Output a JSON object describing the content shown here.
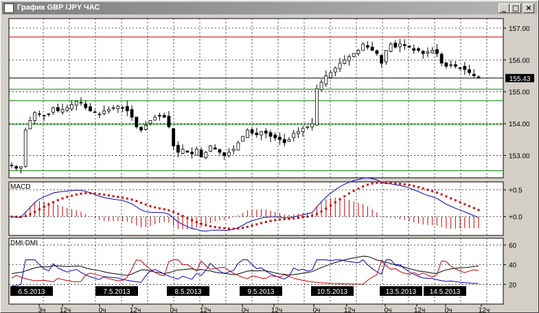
{
  "window": {
    "title": "График GBP /JPY ЧАС",
    "buttons": [
      "_",
      "□",
      "×"
    ]
  },
  "colors": {
    "background": "#ffffff",
    "grid": "#000000",
    "resistance": "#c00000",
    "support": "#008000",
    "macd_signal": "#cc0000",
    "macd_line": "#0000c0",
    "dmi_plus": "#0000c0",
    "dmi_minus": "#cc0000",
    "adx": "#000000"
  },
  "chart_data": [
    {
      "type": "candlestick",
      "instrument": "GBP/JPY",
      "price_axis": {
        "ticks": [
          "157.00",
          "156.00",
          "155.00",
          "154.00",
          "153.00"
        ],
        "range": [
          152.3,
          157.3
        ]
      },
      "current_price": "155.43",
      "horizontal_levels": {
        "resistance": [
          156.72
        ],
        "support": [
          155.08,
          154.72,
          153.98,
          152.52
        ]
      },
      "closes": [
        152.7,
        152.6,
        152.65,
        153.8,
        154.1,
        154.35,
        154.3,
        154.25,
        154.3,
        154.5,
        154.4,
        154.45,
        154.5,
        154.6,
        154.7,
        154.65,
        154.5,
        154.4,
        154.35,
        154.3,
        154.4,
        154.45,
        154.5,
        154.55,
        154.5,
        154.4,
        154.2,
        153.9,
        153.8,
        153.95,
        154.1,
        154.2,
        154.25,
        154.2,
        153.9,
        153.3,
        153.1,
        153.2,
        153.1,
        153.05,
        153.2,
        152.95,
        153.1,
        153.3,
        153.2,
        153.1,
        153.0,
        153.1,
        153.2,
        153.4,
        153.6,
        153.8,
        153.7,
        153.65,
        153.75,
        153.7,
        153.6,
        153.55,
        153.5,
        153.4,
        153.5,
        153.7,
        153.75,
        153.85,
        153.9,
        154.0,
        155.1,
        155.3,
        155.5,
        155.6,
        155.75,
        155.9,
        156.0,
        156.1,
        156.2,
        156.3,
        156.5,
        156.4,
        156.3,
        156.2,
        155.9,
        156.3,
        156.5,
        156.4,
        156.5,
        156.45,
        156.4,
        156.3,
        156.3,
        156.2,
        156.25,
        156.3,
        156.2,
        155.9,
        155.8,
        155.85,
        155.8,
        155.75,
        155.7,
        155.6,
        155.5,
        155.43
      ],
      "indicators": {
        "macd": {
          "label": "MACD",
          "ticks": [
            "+0.5",
            "+0.0"
          ],
          "range": [
            -0.35,
            0.65
          ]
        },
        "dmi": {
          "label": "DMI-DMI",
          "ticks": [
            "60",
            "40",
            "20"
          ],
          "range": [
            0,
            67
          ]
        }
      },
      "time_axis": {
        "dates": [
          "6.5.2013",
          "7.5.2013",
          "8.5.2013",
          "9.5.2013",
          "10.5.2013",
          "13.5.2013",
          "14.5.2013"
        ],
        "hour_labels": [
          "3ч",
          "12ч",
          "0ч",
          "12ч",
          "0ч",
          "12ч",
          "0ч",
          "12ч",
          "0ч",
          "12ч",
          "0ч",
          "12ч",
          "0ч",
          "12ч"
        ]
      }
    }
  ]
}
